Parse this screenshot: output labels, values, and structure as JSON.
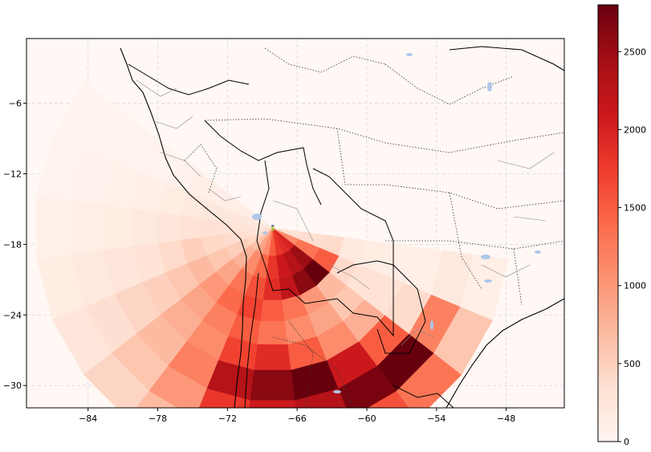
{
  "chart_data": {
    "type": "heatmap",
    "title": "",
    "xlabel": "",
    "ylabel": "",
    "x_ticks": [
      -84,
      -78,
      -72,
      -66,
      -60,
      -54,
      -48
    ],
    "y_ticks": [
      -6,
      -12,
      -18,
      -24,
      -30
    ],
    "x_tick_labels": [
      "−84",
      "−78",
      "−72",
      "−66",
      "−60",
      "−54",
      "−48"
    ],
    "y_tick_labels": [
      "−6",
      "−12",
      "−18",
      "−24",
      "−30"
    ],
    "xlim": [
      -89.3,
      -43.0
    ],
    "ylim": [
      -31.9,
      -0.5
    ],
    "grid": true,
    "colormap": "Reds",
    "colorbar": {
      "min": 0,
      "max": 2800,
      "ticks": [
        0,
        500,
        1000,
        1500,
        2000,
        2500
      ],
      "tick_labels": [
        "0",
        "500",
        "1000",
        "1500",
        "2000",
        "2500"
      ]
    },
    "radar_origin": {
      "lon": -68.1,
      "lat": -16.6
    },
    "ring_edges": [
      0.0,
      2.4,
      4.4,
      6.2,
      8.0,
      10.0,
      12.2,
      14.8,
      17.5,
      20.5
    ],
    "sector_angles": [
      150,
      165,
      180,
      195,
      210,
      225,
      240,
      255,
      270,
      285,
      300,
      315,
      330,
      345
    ],
    "sector_values": [
      [
        120,
        200,
        260,
        320,
        420,
        620,
        900,
        1100,
        1500,
        1800,
        1900,
        2000,
        1100,
        320
      ],
      [
        120,
        220,
        300,
        380,
        520,
        760,
        1100,
        1400,
        1800,
        2100,
        2300,
        2500,
        1300,
        360
      ],
      [
        110,
        220,
        320,
        420,
        600,
        900,
        1300,
        1600,
        1900,
        2200,
        2600,
        2800,
        1500,
        400
      ],
      [
        100,
        200,
        300,
        500,
        700,
        1000,
        1400,
        1700,
        1500,
        1300,
        1000,
        700,
        400,
        200
      ],
      [
        60,
        150,
        250,
        400,
        600,
        900,
        1200,
        1500,
        1300,
        1100,
        900,
        600,
        300,
        150
      ],
      [
        40,
        100,
        200,
        300,
        500,
        800,
        1100,
        1700,
        1900,
        1500,
        1100,
        800,
        300,
        120
      ],
      [
        30,
        80,
        150,
        250,
        450,
        700,
        1200,
        2300,
        2600,
        2800,
        2100,
        1500,
        400,
        100
      ],
      [
        20,
        60,
        120,
        200,
        350,
        600,
        1000,
        1800,
        2100,
        2300,
        2700,
        2800,
        1200,
        200
      ],
      [
        10,
        40,
        80,
        150,
        250,
        450,
        700,
        1000,
        1200,
        1400,
        1600,
        1300,
        600,
        100
      ]
    ],
    "station_colors": [
      "#3b6fb6",
      "#e8c64a",
      "#9bc53d"
    ]
  },
  "colors": {
    "land": "#fff8f5",
    "water": "#aec7e8",
    "frame": "#000000",
    "grid": "#d9d9d9"
  }
}
